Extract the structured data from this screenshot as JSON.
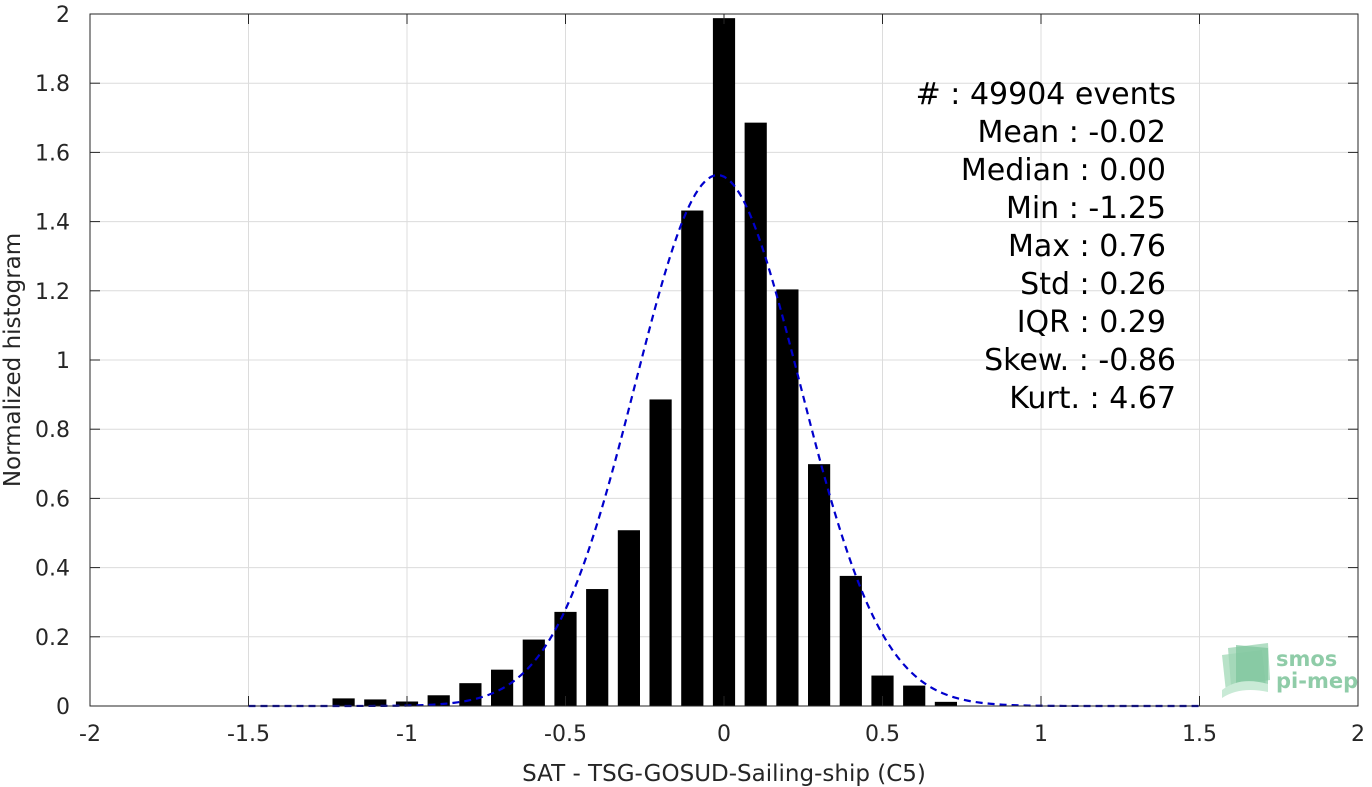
{
  "chart_data": {
    "type": "bar",
    "title": "",
    "xlabel": "SAT - TSG-GOSUD-Sailing-ship (C5)",
    "ylabel": "Normalized histogram",
    "xlim": [
      -2,
      2
    ],
    "ylim": [
      0,
      2
    ],
    "grid": true,
    "x_ticks": [
      "-2",
      "-1.5",
      "-1",
      "-0.5",
      "0",
      "0.5",
      "1",
      "1.5",
      "2"
    ],
    "y_ticks": [
      "0",
      "0.2",
      "0.4",
      "0.6",
      "0.8",
      "1",
      "1.2",
      "1.4",
      "1.6",
      "1.8",
      "2"
    ],
    "bar_width": 0.07,
    "bars": {
      "x": [
        -1.2,
        -1.1,
        -1.0,
        -0.9,
        -0.8,
        -0.7,
        -0.6,
        -0.5,
        -0.4,
        -0.3,
        -0.2,
        -0.1,
        0.0,
        0.1,
        0.2,
        0.3,
        0.4,
        0.5,
        0.6,
        0.7
      ],
      "values": [
        0.022,
        0.019,
        0.013,
        0.031,
        0.066,
        0.105,
        0.192,
        0.272,
        0.338,
        0.508,
        0.886,
        1.432,
        1.988,
        1.686,
        1.204,
        0.699,
        0.376,
        0.088,
        0.059,
        0.012
      ],
      "color": "#000000"
    },
    "fit_curve": {
      "style": "dashed",
      "color": "#0000cc",
      "mean": -0.02,
      "std": 0.26,
      "x_range": [
        -1.5,
        1.5
      ]
    },
    "stats": [
      "#  : 49904 events",
      "Mean : -0.02",
      "Median : 0.00",
      "Min : -1.25",
      "Max : 0.76",
      "Std : 0.26",
      "IQR : 0.29",
      "Skew. : -0.86",
      "Kurt. : 4.67"
    ],
    "logo": {
      "line1": "smos",
      "line2": "pi-mep"
    }
  }
}
